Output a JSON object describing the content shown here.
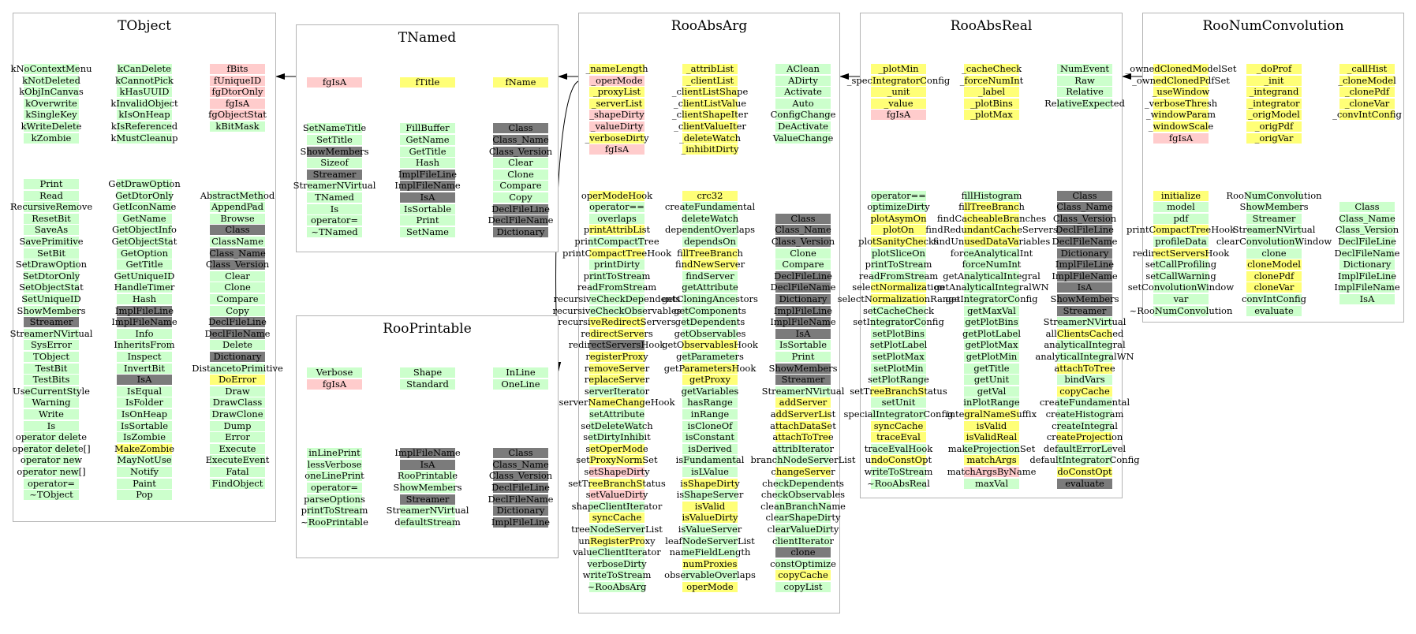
{
  "colors": {
    "public_method": "#ccffcc",
    "protected_member": "#ffff77",
    "private_member": "#ffcccc",
    "inherited": "#7b7b7b",
    "border": "#b4b4b4"
  },
  "classes": [
    {
      "id": "TObject",
      "title": "TObject",
      "columns": [
        [
          "kNoContextMenu|g",
          "kNotDeleted|g",
          "kObjInCanvas|g",
          "kOverwrite|g",
          "kSingleKey|g",
          "kWriteDelete|g",
          "kZombie|g",
          "",
          "",
          "",
          "Print|g",
          "Read|g",
          "RecursiveRemove|g",
          "ResetBit|g",
          "SaveAs|g",
          "SavePrimitive|g",
          "SetBit|g",
          "SetDrawOption|g",
          "SetDtorOnly|g",
          "SetObjectStat|g",
          "SetUniqueID|g",
          "ShowMembers|g",
          "Streamer|d",
          "StreamerNVirtual|g",
          "SysError|g",
          "TObject|g",
          "TestBit|g",
          "TestBits|g",
          "UseCurrentStyle|g",
          "Warning|g",
          "Write|g",
          "Is|g",
          "operator delete|g",
          "operator delete[]|g",
          "operator new|g",
          "operator new[]|g",
          "operator=|g",
          "~TObject|g"
        ],
        [
          "kCanDelete|g",
          "kCannotPick|g",
          "kHasUUID|g",
          "kInvalidObject|g",
          "kIsOnHeap|g",
          "kIsReferenced|g",
          "kMustCleanup|g",
          "",
          "",
          "",
          "GetDrawOption|g",
          "GetDtorOnly|g",
          "GetIconName|g",
          "GetName|g",
          "GetObjectInfo|g",
          "GetObjectStat|g",
          "GetOption|g",
          "GetTitle|g",
          "GetUniqueID|g",
          "HandleTimer|g",
          "Hash|g",
          "ImplFileLine|d",
          "ImplFileName|d",
          "Info|g",
          "InheritsFrom|g",
          "Inspect|g",
          "InvertBit|g",
          "IsA|d",
          "IsEqual|g",
          "IsFolder|g",
          "IsOnHeap|g",
          "IsSortable|g",
          "IsZombie|g",
          "MakeZombie|y",
          "MayNotUse|g",
          "Notify|g",
          "Paint|g",
          "Pop|g"
        ],
        [
          "fBits|r",
          "fUniqueID|r",
          "fgDtorOnly|r",
          "fgIsA|r",
          "fgObjectStat|r",
          "kBitMask|g",
          "",
          "",
          "",
          "",
          "",
          "AbstractMethod|g",
          "AppendPad|g",
          "Browse|g",
          "Class|d",
          "ClassName|g",
          "Class_Name|d",
          "Class_Version|d",
          "Clear|g",
          "Clone|g",
          "Compare|g",
          "Copy|g",
          "DeclFileLine|d",
          "DeclFileName|d",
          "Delete|g",
          "Dictionary|d",
          "DistancetoPrimitive|g",
          "DoError|y",
          "Draw|g",
          "DrawClass|g",
          "DrawClone|g",
          "Dump|g",
          "Error|g",
          "Execute|g",
          "ExecuteEvent|g",
          "Fatal|g",
          "FindObject|g"
        ]
      ]
    },
    {
      "id": "TNamed",
      "title": "TNamed",
      "columns": [
        [
          "fgIsA|r",
          "",
          "",
          "",
          "SetNameTitle|g",
          "SetTitle|g",
          "ShowMembers|d",
          "Sizeof|g",
          "Streamer|d",
          "StreamerNVirtual|g",
          "TNamed|g",
          "Is|g",
          "operator=|g",
          "~TNamed|g"
        ],
        [
          "fTitle|y",
          "",
          "",
          "",
          "FillBuffer|g",
          "GetName|g",
          "GetTitle|g",
          "Hash|g",
          "ImplFileLine|d",
          "ImplFileName|d",
          "IsA|d",
          "IsSortable|g",
          "Print|g",
          "SetName|g"
        ],
        [
          "fName|y",
          "",
          "",
          "",
          "Class|d",
          "Class_Name|d",
          "Class_Version|d",
          "Clear|g",
          "Clone|g",
          "Compare|g",
          "Copy|g",
          "DeclFileLine|d",
          "DeclFileName|d",
          "Dictionary|d"
        ]
      ]
    },
    {
      "id": "RooPrintable",
      "title": "RooPrintable",
      "columns": [
        [
          "Verbose|g",
          "fgIsA|r",
          "",
          "",
          "",
          "",
          "",
          "inLinePrint|g",
          "lessVerbose|g",
          "oneLinePrint|g",
          "operator=|g",
          "parseOptions|g",
          "printToStream|g",
          "~RooPrintable|g"
        ],
        [
          "Shape|g",
          "Standard|g",
          "",
          "",
          "",
          "",
          "",
          "ImplFileName|d",
          "IsA|d",
          "RooPrintable|g",
          "ShowMembers|g",
          "Streamer|d",
          "StreamerNVirtual|g",
          "defaultStream|g"
        ],
        [
          "InLine|g",
          "OneLine|g",
          "",
          "",
          "",
          "",
          "",
          "Class|d",
          "Class_Name|d",
          "Class_Version|d",
          "DeclFileLine|d",
          "DeclFileName|d",
          "Dictionary|d",
          "ImplFileLine|d"
        ]
      ]
    },
    {
      "id": "RooAbsArg",
      "title": "RooAbsArg",
      "columns": [
        [
          "_nameLength|y",
          "_operMode|r",
          "_proxyList|y",
          "_serverList|y",
          "_shapeDirty|r",
          "_valueDirty|r",
          "_verboseDirty|y",
          "fgIsA|r",
          "",
          "",
          "",
          "operModeHook|y",
          "operator==|g",
          "overlaps|g",
          "printAttribList|y",
          "printCompactTree|g",
          "printCompactTreeHook|y",
          "printDirty|g",
          "printToStream|g",
          "readFromStream|g",
          "recursiveCheckDependents|g",
          "recursiveCheckObservables|g",
          "recursiveRedirectServers|y",
          "redirectServers|y",
          "redirectServersHook|d",
          "registerProxy|y",
          "removeServer|y",
          "replaceServer|y",
          "serverIterator|g",
          "serverNameChangeHook|y",
          "setAttribute|g",
          "setDeleteWatch|g",
          "setDirtyInhibit|g",
          "setOperMode|y",
          "setProxyNormSet|y",
          "setShapeDirty|r",
          "setTreeBranchStatus|y",
          "setValueDirty|r",
          "shapeClientIterator|g",
          "syncCache|y",
          "treeNodeServerList|g",
          "unRegisterProxy|y",
          "valueClientIterator|g",
          "verboseDirty|g",
          "writeToStream|g",
          "~RooAbsArg|g"
        ],
        [
          "_attribList|y",
          "_clientList|y",
          "_clientListShape|y",
          "_clientListValue|y",
          "_clientShapeIter|y",
          "_clientValueIter|y",
          "_deleteWatch|y",
          "_inhibitDirty|y",
          "",
          "",
          "",
          "crc32|y",
          "createFundamental|g",
          "deleteWatch|g",
          "dependentOverlaps|g",
          "dependsOn|g",
          "fillTreeBranch|y",
          "findNewServer|y",
          "findServer|g",
          "getAttribute|g",
          "getCloningAncestors|g",
          "getComponents|g",
          "getDependents|g",
          "getObservables|g",
          "getObservablesHook|y",
          "getParameters|g",
          "getParametersHook|y",
          "getProxy|y",
          "getVariables|g",
          "hasRange|g",
          "inRange|g",
          "isCloneOf|g",
          "isConstant|g",
          "isDerived|g",
          "isFundamental|g",
          "isLValue|g",
          "isShapeDirty|y",
          "isShapeServer|g",
          "isValid|y",
          "isValueDirty|y",
          "isValueServer|g",
          "leafNodeServerList|g",
          "nameFieldLength|g",
          "numProxies|y",
          "observableOverlaps|g",
          "operMode|y"
        ],
        [
          "AClean|g",
          "ADirty|g",
          "Activate|g",
          "Auto|g",
          "ConfigChange|g",
          "DeActivate|g",
          "ValueChange|g",
          "",
          "",
          "",
          "",
          "",
          "",
          "Class|d",
          "Class_Name|d",
          "Class_Version|d",
          "Clone|g",
          "Compare|g",
          "DeclFileLine|d",
          "DeclFileName|d",
          "Dictionary|d",
          "ImplFileLine|d",
          "ImplFileName|d",
          "IsA|d",
          "IsSortable|g",
          "Print|g",
          "ShowMembers|d",
          "Streamer|d",
          "StreamerNVirtual|g",
          "addServer|y",
          "addServerList|y",
          "attachDataSet|y",
          "attachToTree|y",
          "attribIterator|g",
          "branchNodeServerList|g",
          "changeServer|y",
          "checkDependents|g",
          "checkObservables|g",
          "cleanBranchName|g",
          "clearShapeDirty|g",
          "clearValueDirty|g",
          "clientIterator|g",
          "clone|d",
          "constOptimize|g",
          "copyCache|y",
          "copyList|g"
        ]
      ]
    },
    {
      "id": "RooAbsReal",
      "title": "RooAbsReal",
      "columns": [
        [
          "_plotMin|y",
          "_specIntegratorConfig|y",
          "_unit|y",
          "_value|y",
          "fgIsA|r",
          "",
          "",
          "",
          "",
          "",
          "",
          "operator==|g",
          "optimizeDirty|g",
          "plotAsymOn|y",
          "plotOn|y",
          "plotSanityChecks|y",
          "plotSliceOn|g",
          "printToStream|g",
          "readFromStream|g",
          "selectNormalization|y",
          "selectNormalizationRange|y",
          "setCacheCheck|g",
          "setIntegratorConfig|g",
          "setPlotBins|g",
          "setPlotLabel|g",
          "setPlotMax|g",
          "setPlotMin|g",
          "setPlotRange|g",
          "setTreeBranchStatus|y",
          "setUnit|g",
          "specialIntegratorConfig|g",
          "syncCache|y",
          "traceEval|y",
          "traceEvalHook|g",
          "undoConstOpt|y",
          "writeToStream|g",
          "~RooAbsReal|g"
        ],
        [
          "_cacheCheck|y",
          "_forceNumInt|y",
          "_label|y",
          "_plotBins|y",
          "_plotMax|y",
          "",
          "",
          "",
          "",
          "",
          "",
          "fillHistogram|g",
          "fillTreeBranch|y",
          "findCacheableBranches|y",
          "findRedundantCacheServers|y",
          "findUnusedDataVariables|y",
          "forceAnalyticalInt|g",
          "forceNumInt|g",
          "getAnalyticalIntegral|g",
          "getAnalyticalIntegralWN|g",
          "getIntegratorConfig|g",
          "getMaxVal|g",
          "getPlotBins|g",
          "getPlotLabel|g",
          "getPlotMax|g",
          "getPlotMin|g",
          "getTitle|g",
          "getUnit|g",
          "getVal|g",
          "inPlotRange|g",
          "integralNameSuffix|y",
          "isValid|y",
          "isValidReal|y",
          "makeProjectionSet|g",
          "matchArgs|y",
          "matchArgsByName|r",
          "maxVal|g"
        ],
        [
          "NumEvent|g",
          "Raw|g",
          "Relative|g",
          "RelativeExpected|g",
          "",
          "",
          "",
          "",
          "",
          "",
          "",
          "Class|d",
          "Class_Name|d",
          "Class_Version|d",
          "DeclFileLine|d",
          "DeclFileName|d",
          "Dictionary|d",
          "ImplFileLine|d",
          "ImplFileName|d",
          "IsA|d",
          "ShowMembers|d",
          "Streamer|d",
          "StreamerNVirtual|g",
          "allClientsCached|y",
          "analyticalIntegral|g",
          "analyticalIntegralWN|g",
          "attachToTree|y",
          "bindVars|g",
          "copyCache|y",
          "createFundamental|g",
          "createHistogram|g",
          "createIntegral|g",
          "createProjection|y",
          "defaultErrorLevel|g",
          "defaultIntegratorConfig|g",
          "doConstOpt|y",
          "evaluate|d"
        ]
      ]
    },
    {
      "id": "RooNumConvolution",
      "title": "RooNumConvolution",
      "columns": [
        [
          "_ownedClonedModelSet|y",
          "_ownedClonedPdfSet|y",
          "_useWindow|y",
          "_verboseThresh|y",
          "_windowParam|y",
          "_windowScale|y",
          "fgIsA|r",
          "",
          "",
          "",
          "",
          "initialize|y",
          "model|g",
          "pdf|g",
          "printCompactTreeHook|y",
          "profileData|g",
          "redirectServersHook|y",
          "setCallProfiling|g",
          "setCallWarning|g",
          "setConvolutionWindow|g",
          "var|g",
          "~RooNumConvolution|g"
        ],
        [
          "_doProf|y",
          "_init|y",
          "_integrand|y",
          "_integrator|y",
          "_origModel|y",
          "_origPdf|y",
          "_origVar|y",
          "",
          "",
          "",
          "",
          "RooNumConvolution|g",
          "ShowMembers|g",
          "Streamer|g",
          "StreamerNVirtual|g",
          "clearConvolutionWindow|g",
          "clone|g",
          "cloneModel|y",
          "clonePdf|y",
          "cloneVar|y",
          "convIntConfig|g",
          "evaluate|g"
        ],
        [
          "_callHist|y",
          "_cloneModel|y",
          "_clonePdf|y",
          "_cloneVar|y",
          "_convIntConfig|y",
          "",
          "",
          "",
          "",
          "",
          "",
          "",
          "Class|g",
          "Class_Name|g",
          "Class_Version|g",
          "DeclFileLine|g",
          "DeclFileName|g",
          "Dictionary|g",
          "ImplFileLine|g",
          "ImplFileName|g",
          "IsA|g"
        ]
      ]
    }
  ]
}
